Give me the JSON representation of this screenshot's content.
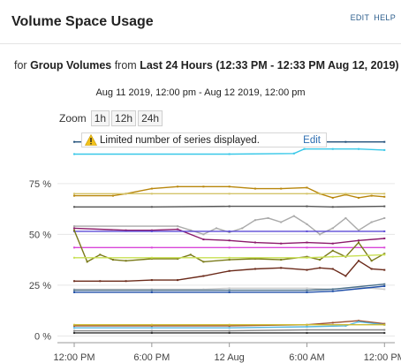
{
  "header": {
    "title": "Volume Space Usage",
    "edit_label": "EDIT",
    "help_label": "HELP"
  },
  "subtitle": {
    "prefix": "for",
    "group": "Group Volumes",
    "from_word": "from",
    "period": "Last 24 Hours (12:33 PM - 12:33 PM Aug 12, 2019)"
  },
  "range_text": "Aug 11 2019, 12:00 pm - Aug 12 2019, 12:00 pm",
  "zoom": {
    "label": "Zoom",
    "options": [
      "1h",
      "12h",
      "24h"
    ]
  },
  "warning": {
    "icon": "warning-triangle-icon",
    "text": "Limited number of series displayed.",
    "edit_label": "Edit"
  },
  "chart_data": {
    "type": "line",
    "y_ticks": [
      "0 %",
      "25 %",
      "50 %",
      "75 %"
    ],
    "y_tick_values": [
      0,
      25,
      50,
      75
    ],
    "ylim": [
      -2,
      101
    ],
    "x_ticks": [
      "12:00 PM",
      "6:00 PM",
      "12 Aug",
      "6:00 AM",
      "12:00 PM"
    ],
    "x_tick_values": [
      0,
      6,
      12,
      18,
      24
    ],
    "xlim": [
      -1.3,
      24.8
    ],
    "grid": true,
    "series": [
      {
        "color": "#1f4e79",
        "x": [
          0,
          6,
          12,
          18,
          21,
          24
        ],
        "values": [
          95.5,
          95.5,
          95.5,
          95.5,
          95.5,
          95.5
        ]
      },
      {
        "color": "#38c8e8",
        "x": [
          0,
          12,
          17,
          17.8,
          20,
          22,
          24
        ],
        "values": [
          89.5,
          89.5,
          89.8,
          92,
          92,
          92,
          91.5
        ]
      },
      {
        "color": "#b8860b",
        "x": [
          0,
          3,
          4,
          6,
          8,
          10,
          12,
          14,
          16,
          18,
          19,
          20,
          21,
          22,
          23,
          24
        ],
        "values": [
          69,
          69,
          70,
          72.5,
          73.5,
          73.5,
          73.5,
          72.5,
          72.5,
          73,
          70,
          68,
          69.5,
          68,
          69,
          68.5
        ]
      },
      {
        "color": "#d4c46a",
        "x": [
          0,
          6,
          12,
          18,
          21,
          24
        ],
        "values": [
          70,
          70,
          70,
          70,
          70,
          70
        ]
      },
      {
        "color": "#555555",
        "x": [
          0,
          6,
          12,
          18,
          20,
          24
        ],
        "values": [
          63.5,
          63.5,
          63.8,
          63.8,
          63.5,
          63.8
        ]
      },
      {
        "color": "#aaaaaa",
        "x": [
          0,
          8,
          9,
          10,
          11,
          12,
          13,
          14,
          15,
          16,
          17,
          18,
          19,
          20,
          21,
          22,
          23,
          24
        ],
        "values": [
          54,
          54,
          52,
          50,
          53,
          51,
          53,
          57,
          58,
          56,
          59,
          55,
          50,
          53,
          58,
          52,
          56,
          58
        ]
      },
      {
        "color": "#8b1a6b",
        "x": [
          0,
          4,
          6,
          8,
          10,
          12,
          14,
          16,
          18,
          20,
          22,
          24
        ],
        "values": [
          53,
          52,
          52,
          52.5,
          47.5,
          47,
          46,
          45.5,
          46,
          45.5,
          47,
          48
        ]
      },
      {
        "color": "#5b4bd6",
        "x": [
          0,
          6,
          12,
          18,
          24
        ],
        "values": [
          51.5,
          51.5,
          51.5,
          51.5,
          51.5
        ]
      },
      {
        "color": "#d946d9",
        "x": [
          0,
          6,
          12,
          18,
          24
        ],
        "values": [
          43.5,
          43.5,
          43.5,
          43.5,
          43.5
        ]
      },
      {
        "color": "#7a7a1a",
        "x": [
          0,
          1,
          2,
          3,
          4,
          6,
          8,
          9,
          10,
          12,
          14,
          16,
          18,
          19,
          20,
          21,
          22,
          23,
          24
        ],
        "values": [
          52,
          36.5,
          40,
          37.5,
          37,
          38,
          38,
          40,
          36.5,
          37.5,
          38,
          37.5,
          39,
          37.5,
          42,
          39,
          46,
          37,
          40.5
        ]
      },
      {
        "color": "#c8e052",
        "x": [
          0,
          6,
          12,
          18,
          20,
          24
        ],
        "values": [
          38.5,
          38.5,
          38.5,
          38.5,
          39,
          40
        ]
      },
      {
        "color": "#6b2a1a",
        "x": [
          0,
          2,
          4,
          6,
          8,
          10,
          12,
          14,
          16,
          18,
          19,
          20,
          21,
          22,
          23,
          24
        ],
        "values": [
          27,
          27,
          27,
          27.5,
          27.5,
          29.5,
          32,
          33,
          33.5,
          32.5,
          33.5,
          33,
          29.5,
          37,
          33,
          32.5
        ]
      },
      {
        "color": "#cccccc",
        "x": [
          0,
          6,
          10,
          12,
          18,
          20,
          22,
          24
        ],
        "values": [
          23,
          23,
          23,
          23.5,
          23.5,
          23,
          24,
          23
        ]
      },
      {
        "color": "#4a6f8a",
        "x": [
          0,
          6,
          12,
          18,
          20,
          24
        ],
        "values": [
          22.5,
          22.5,
          22.5,
          22.5,
          23,
          25.5
        ]
      },
      {
        "color": "#1f4ea8",
        "x": [
          0,
          6,
          12,
          18,
          20,
          24
        ],
        "values": [
          21.5,
          21.5,
          21.5,
          21.5,
          22,
          24.5
        ]
      },
      {
        "color": "#9b4e2c",
        "x": [
          0,
          6,
          12,
          18,
          20,
          22,
          24
        ],
        "values": [
          5,
          5,
          5,
          5.5,
          6.5,
          7.5,
          6
        ]
      },
      {
        "color": "#5ab8e0",
        "x": [
          0,
          6,
          12,
          18,
          21,
          22,
          24
        ],
        "values": [
          4,
          4,
          4,
          4.5,
          5,
          7,
          5.5
        ]
      },
      {
        "color": "#ccbb33",
        "x": [
          0,
          6,
          12,
          18,
          24
        ],
        "values": [
          5.5,
          5.5,
          5.5,
          5.5,
          5.5
        ]
      },
      {
        "color": "#888888",
        "x": [
          0,
          6,
          12,
          18,
          24
        ],
        "values": [
          2.5,
          2.5,
          2.5,
          3,
          3
        ]
      },
      {
        "color": "#333333",
        "x": [
          0,
          6,
          12,
          18,
          24
        ],
        "values": [
          1.5,
          1.5,
          1.5,
          1.5,
          1.5
        ]
      }
    ]
  }
}
